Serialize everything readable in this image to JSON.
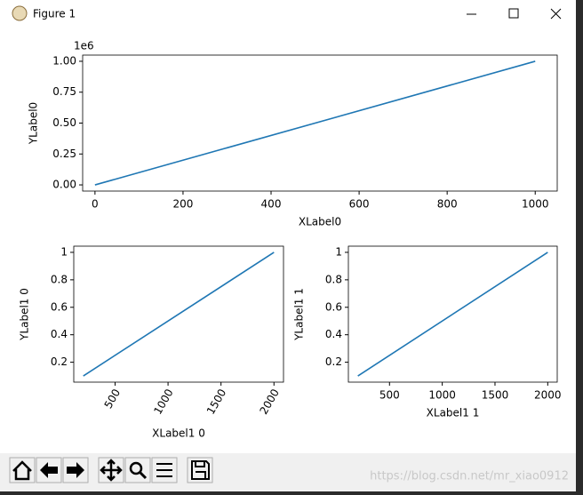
{
  "window": {
    "title": "Figure 1",
    "watermark": "https://blog.csdn.net/mr_xiao0912"
  },
  "chart_data": [
    {
      "type": "line",
      "x": [
        0,
        1000
      ],
      "values": [
        0,
        1000000
      ],
      "color": "#1f77b4",
      "xlim": [
        -28,
        1050
      ],
      "ylim": [
        -50000,
        1050000
      ],
      "xticks": [
        0,
        200,
        400,
        600,
        800,
        1000
      ],
      "yticks": [
        {
          "value": 0,
          "label": "0.00"
        },
        {
          "value": 250000,
          "label": "0.25"
        },
        {
          "value": 500000,
          "label": "0.50"
        },
        {
          "value": 750000,
          "label": "0.75"
        },
        {
          "value": 1000000,
          "label": "1.00"
        }
      ],
      "y_offset_label": "1e6",
      "xlabel": "XLabel0",
      "ylabel": "YLabel0"
    },
    {
      "type": "line",
      "x": [
        200,
        2000
      ],
      "values": [
        0.1,
        1.0
      ],
      "color": "#1f77b4",
      "xlim": [
        110,
        2090
      ],
      "ylim": [
        0.055,
        1.045
      ],
      "xticks": [
        500,
        1000,
        1500,
        2000
      ],
      "yticks": [
        0.2,
        0.4,
        0.6,
        0.8,
        1.0
      ],
      "xtick_rotation": 60,
      "xlabel": "XLabel1 0",
      "ylabel": "YLabel1 0"
    },
    {
      "type": "line",
      "x": [
        200,
        2000
      ],
      "values": [
        0.1,
        1.0
      ],
      "color": "#1f77b4",
      "xlim": [
        110,
        2090
      ],
      "ylim": [
        0.055,
        1.045
      ],
      "xticks": [
        500,
        1000,
        1500,
        2000
      ],
      "yticks": [
        0.2,
        0.4,
        0.6,
        0.8,
        1.0
      ],
      "xlabel": "XLabel1 1",
      "ylabel": "YLabel1 1"
    }
  ]
}
